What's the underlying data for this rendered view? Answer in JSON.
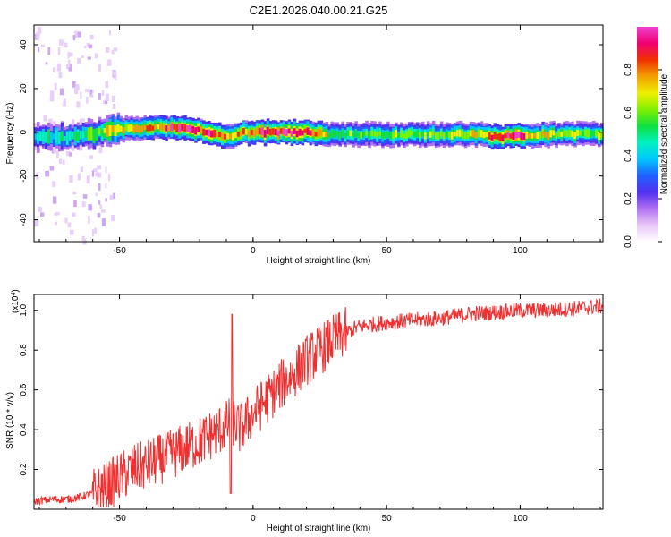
{
  "title": "C2E1.2026.040.00.21.G25",
  "chart_data": [
    {
      "type": "heatmap",
      "name": "spectrogram",
      "xlabel": "Height of straight line (km)",
      "ylabel": "Frequency (Hz)",
      "xlim": [
        -82,
        131
      ],
      "ylim": [
        -50,
        49
      ],
      "xticks": [
        -50,
        0,
        50,
        100
      ],
      "yticks": [
        -40,
        -20,
        0,
        20,
        40
      ],
      "colorbar": {
        "label": "Normalized spectral amplitude",
        "range": [
          0,
          1
        ],
        "ticks": [
          0.0,
          0.2,
          0.4,
          0.6,
          0.8
        ],
        "colors": [
          "#ffffff",
          "#e8c8f8",
          "#b070f0",
          "#5030f0",
          "#2060ff",
          "#00c8ff",
          "#00f0c0",
          "#10e040",
          "#80f000",
          "#f0f000",
          "#f0a000",
          "#f03000",
          "#f00070",
          "#f040d0"
        ]
      },
      "ridge": [
        {
          "x": -82,
          "f": -2,
          "amp": 0.45
        },
        {
          "x": -70,
          "f": -2,
          "amp": 0.5
        },
        {
          "x": -60,
          "f": -1,
          "amp": 0.55
        },
        {
          "x": -55,
          "f": 1,
          "amp": 0.7
        },
        {
          "x": -45,
          "f": 2,
          "amp": 0.75
        },
        {
          "x": -35,
          "f": 2,
          "amp": 0.8
        },
        {
          "x": -29,
          "f": 2,
          "amp": 0.95
        },
        {
          "x": -20,
          "f": 1,
          "amp": 0.85
        },
        {
          "x": -16,
          "f": 0,
          "amp": 0.95
        },
        {
          "x": -10,
          "f": -2,
          "amp": 0.7
        },
        {
          "x": -5,
          "f": 0,
          "amp": 0.8
        },
        {
          "x": 0,
          "f": 0,
          "amp": 0.9
        },
        {
          "x": 10,
          "f": 0,
          "amp": 0.95
        },
        {
          "x": 20,
          "f": 0,
          "amp": 0.9
        },
        {
          "x": 30,
          "f": -1,
          "amp": 0.6
        },
        {
          "x": 50,
          "f": -1,
          "amp": 0.6
        },
        {
          "x": 70,
          "f": -1,
          "amp": 0.65
        },
        {
          "x": 85,
          "f": -1,
          "amp": 0.7
        },
        {
          "x": 90,
          "f": -2,
          "amp": 0.95
        },
        {
          "x": 97,
          "f": -2,
          "amp": 0.95
        },
        {
          "x": 105,
          "f": -1,
          "amp": 0.75
        },
        {
          "x": 115,
          "f": -1,
          "amp": 0.65
        },
        {
          "x": 131,
          "f": -1,
          "amp": 0.6
        }
      ]
    },
    {
      "type": "line",
      "name": "snr",
      "xlabel": "Height of straight line (km)",
      "ylabel": "SNR (10 * v/v)",
      "scale_label_prefix": "(x10",
      "scale_label_exp": "4",
      "scale_label_suffix": ")",
      "xlim": [
        -82,
        131
      ],
      "ylim": [
        0,
        1.08
      ],
      "xticks": [
        -50,
        0,
        50,
        100
      ],
      "yticks": [
        0.2,
        0.4,
        0.6,
        0.8,
        1.0
      ],
      "color": "#f03030",
      "x": [
        -82,
        -75,
        -70,
        -65,
        -60,
        -55,
        -50,
        -45,
        -40,
        -35,
        -30,
        -25,
        -20,
        -15,
        -10,
        -8,
        -5,
        0,
        5,
        10,
        15,
        20,
        25,
        30,
        35,
        40,
        45,
        50,
        60,
        70,
        80,
        90,
        100,
        110,
        120,
        131
      ],
      "values": [
        0.04,
        0.05,
        0.05,
        0.06,
        0.08,
        0.11,
        0.16,
        0.2,
        0.22,
        0.25,
        0.28,
        0.31,
        0.34,
        0.38,
        0.42,
        0.45,
        0.4,
        0.48,
        0.55,
        0.62,
        0.68,
        0.75,
        0.8,
        0.85,
        0.89,
        0.92,
        0.93,
        0.94,
        0.95,
        0.96,
        0.98,
        0.99,
        1.0,
        1.0,
        1.01,
        1.02
      ]
    }
  ]
}
